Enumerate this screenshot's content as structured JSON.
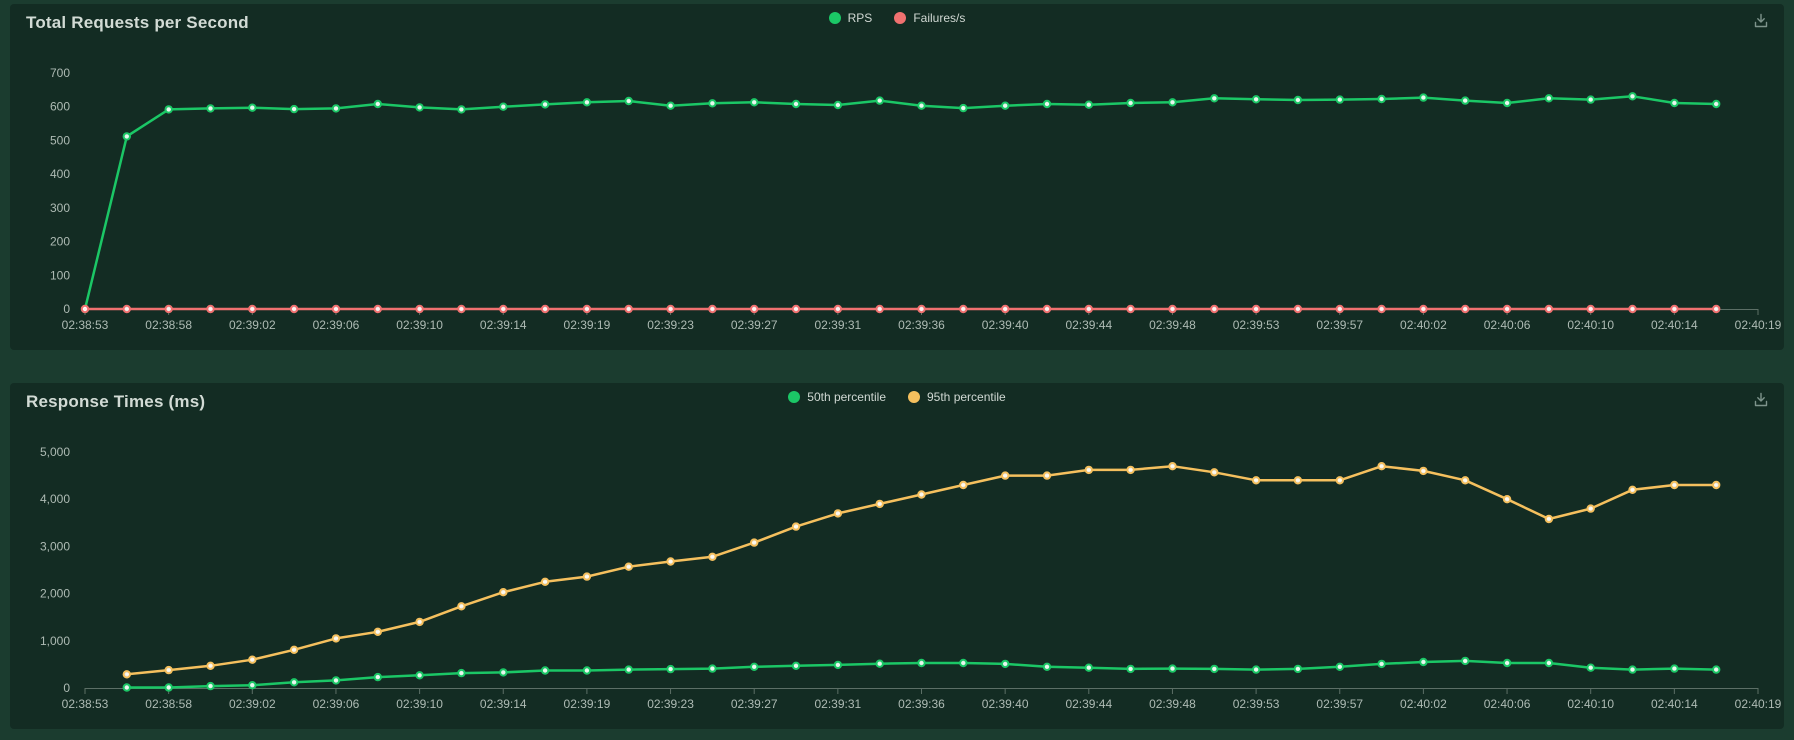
{
  "page": {
    "background_color": "#1b3c2f",
    "panel_color": "#132c23"
  },
  "icons": {
    "download": "tray-arrow-down"
  },
  "chart_data": [
    {
      "type": "line",
      "title": "Total Requests per Second",
      "legend_position": "top-center",
      "grid": false,
      "x_slots": 41,
      "x_tick_labels": [
        "02:38:53",
        "02:38:58",
        "02:39:02",
        "02:39:06",
        "02:39:10",
        "02:39:14",
        "02:39:19",
        "02:39:23",
        "02:39:27",
        "02:39:31",
        "02:39:36",
        "02:39:40",
        "02:39:44",
        "02:39:48",
        "02:39:53",
        "02:39:57",
        "02:40:02",
        "02:40:06",
        "02:40:10",
        "02:40:14",
        "02:40:19"
      ],
      "ylim": [
        0,
        700
      ],
      "y_ticks": [
        0,
        100,
        200,
        300,
        400,
        500,
        600,
        700
      ],
      "y_tick_labels": [
        "0",
        "100",
        "200",
        "300",
        "400",
        "500",
        "600",
        "700"
      ],
      "series": [
        {
          "name": "RPS",
          "color": "#1bc766",
          "start_index": 0,
          "values": [
            0,
            512,
            592,
            595,
            597,
            593,
            595,
            608,
            598,
            592,
            600,
            607,
            613,
            617,
            603,
            610,
            613,
            608,
            605,
            618,
            603,
            596,
            603,
            608,
            606,
            611,
            613,
            625,
            622,
            620,
            621,
            623,
            627,
            618,
            611,
            625,
            621,
            631,
            611,
            608
          ]
        },
        {
          "name": "Failures/s",
          "color": "#f07170",
          "start_index": 0,
          "values": [
            0,
            0,
            0,
            0,
            0,
            0,
            0,
            0,
            0,
            0,
            0,
            0,
            0,
            0,
            0,
            0,
            0,
            0,
            0,
            0,
            0,
            0,
            0,
            0,
            0,
            0,
            0,
            0,
            0,
            0,
            0,
            0,
            0,
            0,
            0,
            0,
            0,
            0,
            0,
            0
          ]
        }
      ]
    },
    {
      "type": "line",
      "title": "Response Times (ms)",
      "legend_position": "top-center",
      "grid": false,
      "x_slots": 41,
      "x_tick_labels": [
        "02:38:53",
        "02:38:58",
        "02:39:02",
        "02:39:06",
        "02:39:10",
        "02:39:14",
        "02:39:19",
        "02:39:23",
        "02:39:27",
        "02:39:31",
        "02:39:36",
        "02:39:40",
        "02:39:44",
        "02:39:48",
        "02:39:53",
        "02:39:57",
        "02:40:02",
        "02:40:06",
        "02:40:10",
        "02:40:14",
        "02:40:19"
      ],
      "ylim": [
        0,
        5000
      ],
      "y_ticks": [
        0,
        1000,
        2000,
        3000,
        4000,
        5000
      ],
      "y_tick_labels": [
        "0",
        "1,000",
        "2,000",
        "3,000",
        "4,000",
        "5,000"
      ],
      "series": [
        {
          "name": "50th percentile",
          "color": "#1bc766",
          "start_index": 1,
          "values": [
            10,
            10,
            40,
            60,
            120,
            160,
            230,
            270,
            315,
            330,
            370,
            370,
            390,
            400,
            410,
            450,
            470,
            490,
            515,
            530,
            530,
            510,
            450,
            430,
            405,
            410,
            405,
            390,
            405,
            450,
            510,
            550,
            575,
            530,
            530,
            430,
            390,
            410,
            390
          ]
        },
        {
          "name": "95th percentile",
          "color": "#f5c05e",
          "start_index": 1,
          "values": [
            290,
            380,
            470,
            600,
            810,
            1050,
            1190,
            1400,
            1730,
            2030,
            2250,
            2360,
            2570,
            2680,
            2780,
            3080,
            3420,
            3700,
            3900,
            4100,
            4300,
            4500,
            4500,
            4620,
            4620,
            4700,
            4570,
            4400,
            4400,
            4400,
            4700,
            4600,
            4400,
            4000,
            3580,
            3800,
            4200,
            4300,
            4300
          ]
        }
      ]
    }
  ]
}
